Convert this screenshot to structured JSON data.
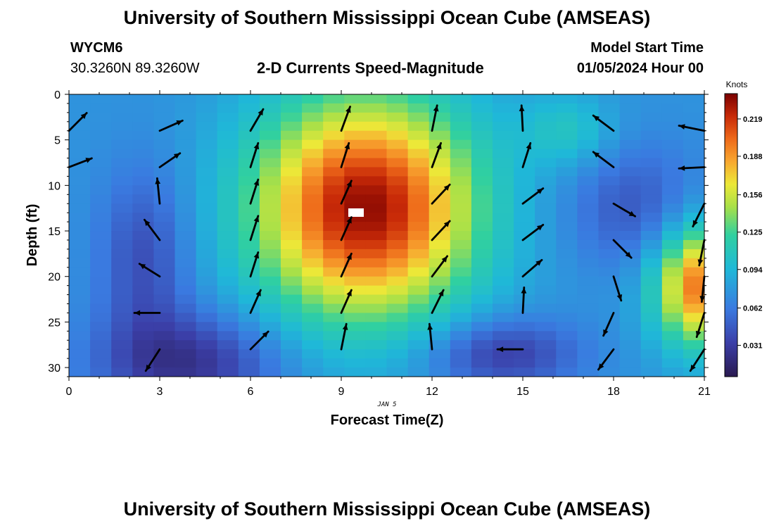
{
  "header": {
    "title": "University of Southern Mississippi Ocean Cube (AMSEAS)",
    "station": "WYCM6",
    "coords": "30.3260N  89.3260W",
    "subtitle": "2-D Currents Speed-Magnitude",
    "start_label": "Model Start Time",
    "start_value": "01/05/2024 Hour 00"
  },
  "footer": {
    "title": "University of Southern Mississippi Ocean Cube (AMSEAS)"
  },
  "chart_data": {
    "type": "heatmap",
    "xlabel": "Forecast Time(Z)",
    "ylabel": "Depth (ft)",
    "date_label": "JAN 5",
    "xlim": [
      0,
      21
    ],
    "ylim": [
      0,
      31
    ],
    "y_inverted": true,
    "x_ticks": [
      0,
      3,
      6,
      9,
      12,
      15,
      18,
      21
    ],
    "y_ticks": [
      0,
      5,
      10,
      15,
      20,
      25,
      30
    ],
    "colorbar": {
      "label": "Knots",
      "ticks": [
        0.031,
        0.062,
        0.094,
        0.125,
        0.156,
        0.188,
        0.219
      ],
      "range": [
        0.005,
        0.24
      ]
    },
    "colors": {
      "low": "#2a1a50",
      "mid_low": "#3a7ae0",
      "mid": "#30d0a0",
      "mid_high": "#d8e840",
      "high": "#f08020",
      "max": "#8a0000"
    },
    "speed_features": [
      {
        "time": 9.8,
        "depth": 13,
        "peak_knots": 0.235
      },
      {
        "time": 4.3,
        "depth": 30,
        "trough_knots": 0.008
      },
      {
        "time": 14.3,
        "depth": 28.5,
        "trough_knots": 0.015
      },
      {
        "time": 18.5,
        "depth": 12,
        "trough_knots": 0.04
      },
      {
        "time": 20.8,
        "depth": 21,
        "peak_knots": 0.19
      }
    ],
    "arrows": [
      {
        "t": 0,
        "d": 4,
        "u": 0.7,
        "v": 0.7
      },
      {
        "t": 0,
        "d": 8,
        "u": 0.9,
        "v": 0.35
      },
      {
        "t": 3,
        "d": 4,
        "u": 0.9,
        "v": 0.4
      },
      {
        "t": 3,
        "d": 8,
        "u": 0.8,
        "v": 0.55
      },
      {
        "t": 3,
        "d": 12,
        "u": -0.1,
        "v": 1.0
      },
      {
        "t": 3,
        "d": 16,
        "u": -0.6,
        "v": 0.8
      },
      {
        "t": 3,
        "d": 20,
        "u": -0.8,
        "v": 0.5
      },
      {
        "t": 3,
        "d": 24,
        "u": -1.0,
        "v": 0.0
      },
      {
        "t": 3,
        "d": 28,
        "u": -0.55,
        "v": -0.85
      },
      {
        "t": 6,
        "d": 4,
        "u": 0.5,
        "v": 0.85
      },
      {
        "t": 6,
        "d": 8,
        "u": 0.3,
        "v": 0.95
      },
      {
        "t": 6,
        "d": 12,
        "u": 0.3,
        "v": 0.95
      },
      {
        "t": 6,
        "d": 16,
        "u": 0.3,
        "v": 0.95
      },
      {
        "t": 6,
        "d": 20,
        "u": 0.3,
        "v": 0.95
      },
      {
        "t": 6,
        "d": 24,
        "u": 0.4,
        "v": 0.9
      },
      {
        "t": 6,
        "d": 28,
        "u": 0.7,
        "v": 0.7
      },
      {
        "t": 9,
        "d": 4,
        "u": 0.35,
        "v": 0.95
      },
      {
        "t": 9,
        "d": 8,
        "u": 0.3,
        "v": 0.95
      },
      {
        "t": 9,
        "d": 12,
        "u": 0.4,
        "v": 0.9
      },
      {
        "t": 9,
        "d": 16,
        "u": 0.4,
        "v": 0.9
      },
      {
        "t": 9,
        "d": 20,
        "u": 0.4,
        "v": 0.9
      },
      {
        "t": 9,
        "d": 24,
        "u": 0.4,
        "v": 0.9
      },
      {
        "t": 9,
        "d": 28,
        "u": 0.2,
        "v": 1.0
      },
      {
        "t": 12,
        "d": 4,
        "u": 0.2,
        "v": 1.0
      },
      {
        "t": 12,
        "d": 8,
        "u": 0.35,
        "v": 0.95
      },
      {
        "t": 12,
        "d": 12,
        "u": 0.7,
        "v": 0.75
      },
      {
        "t": 12,
        "d": 16,
        "u": 0.7,
        "v": 0.75
      },
      {
        "t": 12,
        "d": 20,
        "u": 0.6,
        "v": 0.8
      },
      {
        "t": 12,
        "d": 24,
        "u": 0.45,
        "v": 0.9
      },
      {
        "t": 12,
        "d": 28,
        "u": -0.1,
        "v": 1.0
      },
      {
        "t": 15,
        "d": 4,
        "u": -0.05,
        "v": 1.0
      },
      {
        "t": 15,
        "d": 8,
        "u": 0.3,
        "v": 0.95
      },
      {
        "t": 15,
        "d": 12,
        "u": 0.8,
        "v": 0.6
      },
      {
        "t": 15,
        "d": 16,
        "u": 0.8,
        "v": 0.6
      },
      {
        "t": 15,
        "d": 20,
        "u": 0.75,
        "v": 0.65
      },
      {
        "t": 15,
        "d": 24,
        "u": 0.05,
        "v": 1.0
      },
      {
        "t": 15,
        "d": 28,
        "u": -1.0,
        "v": 0.0
      },
      {
        "t": 18,
        "d": 4,
        "u": -0.8,
        "v": 0.6
      },
      {
        "t": 18,
        "d": 8,
        "u": -0.8,
        "v": 0.6
      },
      {
        "t": 18,
        "d": 12,
        "u": 0.85,
        "v": -0.5
      },
      {
        "t": 18,
        "d": 16,
        "u": 0.7,
        "v": -0.7
      },
      {
        "t": 18,
        "d": 20,
        "u": 0.3,
        "v": -0.95
      },
      {
        "t": 18,
        "d": 24,
        "u": -0.4,
        "v": -0.9
      },
      {
        "t": 18,
        "d": 28,
        "u": -0.6,
        "v": -0.8
      },
      {
        "t": 21,
        "d": 4,
        "u": -1.0,
        "v": 0.2
      },
      {
        "t": 21,
        "d": 8,
        "u": -1.0,
        "v": -0.05
      },
      {
        "t": 21,
        "d": 12,
        "u": -0.45,
        "v": -0.9
      },
      {
        "t": 21,
        "d": 16,
        "u": -0.2,
        "v": -1.0
      },
      {
        "t": 21,
        "d": 20,
        "u": -0.1,
        "v": -1.0
      },
      {
        "t": 21,
        "d": 24,
        "u": -0.3,
        "v": -0.95
      },
      {
        "t": 21,
        "d": 28,
        "u": -0.55,
        "v": -0.85
      }
    ]
  }
}
